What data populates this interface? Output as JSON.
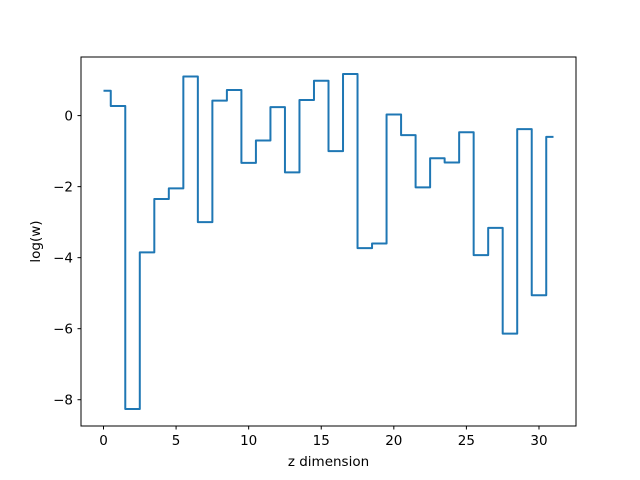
{
  "figure": {
    "background": "#ffffff"
  },
  "chart_data": {
    "type": "line",
    "style": "step-mid",
    "title": "",
    "xlabel": "z dimension",
    "ylabel": "log(w)",
    "x": [
      0,
      1,
      2,
      3,
      4,
      5,
      6,
      7,
      8,
      9,
      10,
      11,
      12,
      13,
      14,
      15,
      16,
      17,
      18,
      19,
      20,
      21,
      22,
      23,
      24,
      25,
      26,
      27,
      28,
      29,
      30,
      31
    ],
    "values": [
      0.7,
      0.27,
      -8.26,
      -3.85,
      -2.35,
      -2.05,
      1.1,
      -3.0,
      0.42,
      0.72,
      -1.33,
      -0.7,
      0.24,
      -1.6,
      0.44,
      0.98,
      -1.0,
      1.17,
      -3.73,
      -3.6,
      0.03,
      -0.55,
      -2.02,
      -1.2,
      -1.32,
      -0.47,
      -3.93,
      -3.16,
      -6.14,
      -0.38,
      -5.06,
      -0.6
    ],
    "xlim": [
      -1.55,
      32.55
    ],
    "ylim": [
      -8.74,
      1.65
    ],
    "xtick_values": [
      0,
      5,
      10,
      15,
      20,
      25,
      30
    ],
    "xtick_labels": [
      "0",
      "5",
      "10",
      "15",
      "20",
      "25",
      "30"
    ],
    "ytick_values": [
      0,
      -2,
      -4,
      -6,
      -8
    ],
    "ytick_labels": [
      "0",
      "−2",
      "−4",
      "−6",
      "−8"
    ],
    "line_color": "#1f77b4",
    "axis_color": "#000000",
    "grid": false,
    "legend": false
  }
}
